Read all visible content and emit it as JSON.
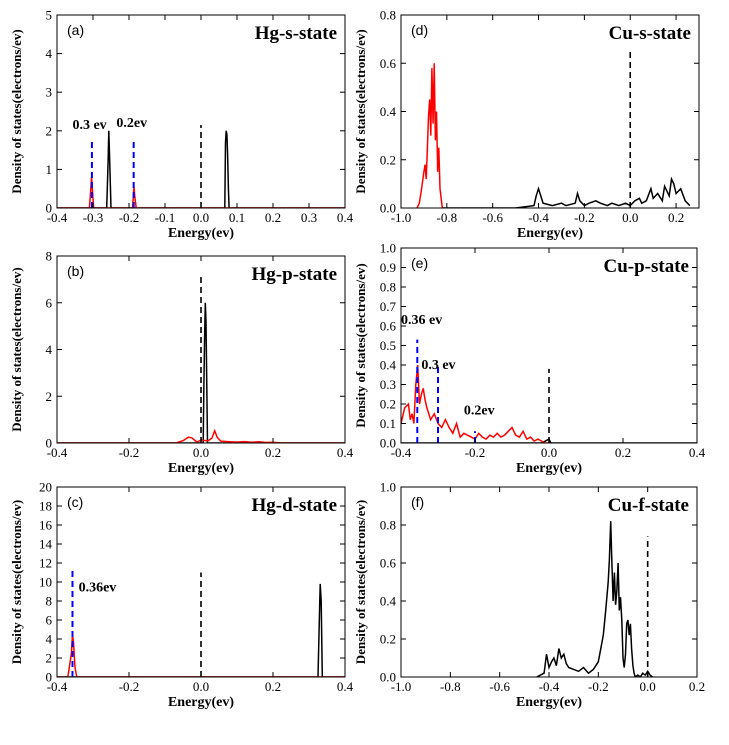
{
  "chart_data": [
    {
      "panel": "(a)",
      "title": "Hg-s-state",
      "type": "line",
      "xlabel": "Energy(ev)",
      "ylabel": "Density of states(electrons/ev)",
      "xlim": [
        -0.4,
        0.4
      ],
      "ylim": [
        0,
        5
      ],
      "xticks": [
        -0.4,
        -0.3,
        -0.2,
        -0.1,
        0.0,
        0.1,
        0.2,
        0.3,
        0.4
      ],
      "yticks": [
        0,
        1,
        2,
        3,
        4,
        5
      ],
      "series": [
        {
          "color": "#000000",
          "x": [
            -0.4,
            -0.262,
            -0.258,
            -0.256,
            -0.254,
            -0.25,
            0.066,
            0.068,
            0.07,
            0.072,
            0.074,
            0.076,
            0.078,
            0.4
          ],
          "y": [
            0,
            0,
            1.2,
            2.0,
            1.3,
            0,
            0,
            1.7,
            2.0,
            1.9,
            1.4,
            0.5,
            0,
            0
          ]
        },
        {
          "color": "#ff0000",
          "x": [
            -0.4,
            -0.31,
            -0.306,
            -0.304,
            -0.302,
            -0.298,
            -0.19,
            -0.188,
            -0.186,
            -0.184,
            -0.18,
            0.4
          ],
          "y": [
            0,
            0,
            0.5,
            0.8,
            0.5,
            0,
            0,
            0.3,
            0.55,
            0.3,
            0,
            0
          ]
        }
      ],
      "vlines": [
        {
          "x": -0.303,
          "y": 1.75,
          "color": "#0000ff"
        },
        {
          "x": -0.187,
          "y": 1.75,
          "color": "#0000ff"
        },
        {
          "x": 0.0,
          "y": 2.15,
          "color": "#000000"
        }
      ],
      "annotations": [
        {
          "text": "0.3 ev",
          "x": -0.357,
          "y": 2.05
        },
        {
          "text": "0.2ev",
          "x": -0.235,
          "y": 2.1
        }
      ]
    },
    {
      "panel": "(b)",
      "title": "Hg-p-state",
      "type": "line",
      "xlabel": "Energy(ev)",
      "ylabel": "Density of states(electrons/ev)",
      "xlim": [
        -0.4,
        0.4
      ],
      "ylim": [
        0,
        8
      ],
      "xticks": [
        -0.4,
        -0.2,
        0.0,
        0.2,
        0.4
      ],
      "yticks": [
        0,
        2,
        4,
        6,
        8
      ],
      "series": [
        {
          "color": "#000000",
          "x": [
            -0.4,
            0.006,
            0.008,
            0.01,
            0.012,
            0.014,
            0.016,
            0.018,
            0.4
          ],
          "y": [
            0,
            0,
            2.5,
            4.5,
            6.0,
            5.2,
            2.4,
            0,
            0
          ]
        },
        {
          "color": "#ff0000",
          "x": [
            -0.4,
            -0.07,
            -0.05,
            -0.035,
            -0.025,
            -0.015,
            -0.01,
            0.0,
            0.02,
            0.03,
            0.038,
            0.045,
            0.055,
            0.08,
            0.1,
            0.12,
            0.14,
            0.16,
            0.18,
            0.2,
            0.22,
            0.4
          ],
          "y": [
            0,
            0,
            0.1,
            0.25,
            0.22,
            0.08,
            0.05,
            0.12,
            0.1,
            0.2,
            0.52,
            0.25,
            0.08,
            0.05,
            0.04,
            0.06,
            0.03,
            0.05,
            0.02,
            0.03,
            0,
            0
          ]
        }
      ],
      "vlines": [
        {
          "x": 0.0,
          "y": 7.2,
          "color": "#000000"
        }
      ],
      "annotations": []
    },
    {
      "panel": "(c)",
      "title": "Hg-d-state",
      "type": "line",
      "xlabel": "Energy(ev)",
      "ylabel": "Density of states(electrons/ev)",
      "xlim": [
        -0.4,
        0.4
      ],
      "ylim": [
        0,
        20
      ],
      "xticks": [
        -0.4,
        -0.2,
        0.0,
        0.2,
        0.4
      ],
      "yticks": [
        0,
        2,
        4,
        6,
        8,
        10,
        12,
        14,
        16,
        18,
        20
      ],
      "series": [
        {
          "color": "#000000",
          "x": [
            -0.4,
            0.325,
            0.328,
            0.331,
            0.334,
            0.337,
            0.4
          ],
          "y": [
            0,
            0,
            5,
            9.8,
            8,
            0,
            0
          ]
        },
        {
          "color": "#ff0000",
          "x": [
            -0.4,
            -0.37,
            -0.364,
            -0.36,
            -0.357,
            -0.354,
            -0.35,
            -0.345,
            0.4
          ],
          "y": [
            0,
            0,
            1.5,
            2.5,
            4.5,
            3.5,
            1.0,
            0,
            0
          ]
        }
      ],
      "vlines": [
        {
          "x": -0.357,
          "y": 11.2,
          "color": "#0000ff"
        },
        {
          "x": 0.0,
          "y": 11.0,
          "color": "#000000"
        }
      ],
      "annotations": [
        {
          "text": "0.36ev",
          "x": -0.34,
          "y": 9.0
        }
      ]
    },
    {
      "panel": "(d)",
      "title": "Cu-s-state",
      "type": "line",
      "xlabel": "Energy(ev)",
      "ylabel": "Density of states(electrons/ev)",
      "xlim": [
        -1.0,
        0.3
      ],
      "ylim": [
        0,
        0.8
      ],
      "xticks": [
        -1.0,
        -0.8,
        -0.6,
        -0.4,
        -0.2,
        0.0,
        0.2
      ],
      "yticks": [
        0.0,
        0.2,
        0.4,
        0.6,
        0.8
      ],
      "series": [
        {
          "color": "#000000",
          "x": [
            -0.82,
            -0.5,
            -0.42,
            -0.41,
            -0.4,
            -0.38,
            -0.34,
            -0.3,
            -0.28,
            -0.24,
            -0.23,
            -0.22,
            -0.2,
            -0.18,
            -0.15,
            -0.13,
            -0.1,
            -0.08,
            -0.05,
            -0.02,
            0.0,
            0.02,
            0.04,
            0.05,
            0.07,
            0.09,
            0.1,
            0.12,
            0.14,
            0.15,
            0.17,
            0.18,
            0.19,
            0.2,
            0.22,
            0.24,
            0.26
          ],
          "y": [
            0,
            0,
            0.01,
            0.05,
            0.08,
            0.02,
            0.01,
            0.02,
            0.01,
            0.02,
            0.06,
            0.03,
            0.01,
            0.02,
            0.03,
            0.02,
            0.01,
            0.02,
            0.01,
            0.02,
            0.01,
            0.03,
            0.04,
            0.02,
            0.03,
            0.08,
            0.04,
            0.06,
            0.03,
            0.09,
            0.05,
            0.12,
            0.1,
            0.06,
            0.08,
            0.03,
            0.01
          ]
        },
        {
          "color": "#ff0000",
          "x": [
            -0.93,
            -0.92,
            -0.91,
            -0.9,
            -0.895,
            -0.89,
            -0.885,
            -0.88,
            -0.875,
            -0.87,
            -0.865,
            -0.86,
            -0.855,
            -0.85,
            -0.845,
            -0.84,
            -0.835,
            -0.83,
            -0.82
          ],
          "y": [
            0,
            0.02,
            0.08,
            0.15,
            0.18,
            0.12,
            0.25,
            0.38,
            0.45,
            0.3,
            0.58,
            0.35,
            0.6,
            0.28,
            0.4,
            0.15,
            0.25,
            0.08,
            0
          ]
        }
      ],
      "vlines": [
        {
          "x": 0.0,
          "y": 0.66,
          "color": "#000000"
        }
      ],
      "annotations": []
    },
    {
      "panel": "(e)",
      "title": "Cu-p-state",
      "type": "line",
      "xlabel": "Energy(ev)",
      "ylabel": "Density of states(electrons/ev)",
      "xlim": [
        -0.4,
        0.4
      ],
      "ylim": [
        0,
        1.0
      ],
      "xticks": [
        -0.4,
        -0.2,
        0.0,
        0.2,
        0.4
      ],
      "yticks": [
        0.0,
        0.1,
        0.2,
        0.3,
        0.4,
        0.5,
        0.6,
        0.7,
        0.8,
        0.9,
        1.0
      ],
      "series": [
        {
          "color": "#000000",
          "x": [
            -0.4,
            -0.02,
            -0.01,
            0.0,
            0.005,
            0.4
          ],
          "y": [
            0,
            0,
            0.01,
            0.02,
            0,
            0
          ]
        },
        {
          "color": "#ff0000",
          "x": [
            -0.4,
            -0.39,
            -0.38,
            -0.375,
            -0.37,
            -0.365,
            -0.36,
            -0.355,
            -0.35,
            -0.345,
            -0.34,
            -0.335,
            -0.33,
            -0.325,
            -0.32,
            -0.31,
            -0.3,
            -0.29,
            -0.28,
            -0.27,
            -0.26,
            -0.25,
            -0.24,
            -0.23,
            -0.22,
            -0.21,
            -0.2,
            -0.19,
            -0.18,
            -0.17,
            -0.16,
            -0.15,
            -0.14,
            -0.13,
            -0.12,
            -0.11,
            -0.1,
            -0.09,
            -0.08,
            -0.07,
            -0.06,
            -0.05,
            -0.04,
            -0.03,
            -0.02,
            -0.01,
            0.0
          ],
          "y": [
            0.1,
            0.18,
            0.2,
            0.12,
            0.15,
            0.1,
            0.3,
            0.4,
            0.2,
            0.25,
            0.28,
            0.22,
            0.18,
            0.15,
            0.12,
            0.15,
            0.1,
            0.08,
            0.12,
            0.08,
            0.05,
            0.1,
            0.03,
            0.05,
            0.04,
            0.03,
            0.02,
            0.05,
            0.03,
            0.02,
            0.04,
            0.03,
            0.05,
            0.03,
            0.04,
            0.06,
            0.08,
            0.04,
            0.03,
            0.06,
            0.02,
            0.03,
            0.01,
            0.02,
            0.01,
            0.0,
            0.0
          ]
        }
      ],
      "vlines": [
        {
          "x": -0.356,
          "y": 0.53,
          "color": "#0000ff"
        },
        {
          "x": -0.3,
          "y": 0.4,
          "color": "#0000ff"
        },
        {
          "x": -0.2,
          "y": 0.06,
          "color": "#0000ff"
        },
        {
          "x": 0.0,
          "y": 0.38,
          "color": "#000000"
        }
      ],
      "annotations": [
        {
          "text": "0.36 ev",
          "x": -0.4,
          "y": 0.61
        },
        {
          "text": "0.3 ev",
          "x": -0.345,
          "y": 0.38
        },
        {
          "text": "0.2ev",
          "x": -0.23,
          "y": 0.145
        }
      ]
    },
    {
      "panel": "(f)",
      "title": "Cu-f-state",
      "type": "line",
      "xlabel": "Energy(ev)",
      "ylabel": "Density of states(electrons/ev)",
      "xlim": [
        -1.0,
        0.2
      ],
      "ylim": [
        0,
        1.0
      ],
      "xticks": [
        -1.0,
        -0.8,
        -0.6,
        -0.4,
        -0.2,
        0.0,
        0.2
      ],
      "yticks": [
        0.0,
        0.2,
        0.4,
        0.6,
        0.8,
        1.0
      ],
      "series": [
        {
          "color": "#000000",
          "x": [
            -0.45,
            -0.42,
            -0.41,
            -0.4,
            -0.39,
            -0.38,
            -0.37,
            -0.36,
            -0.35,
            -0.34,
            -0.33,
            -0.32,
            -0.3,
            -0.28,
            -0.26,
            -0.24,
            -0.22,
            -0.2,
            -0.19,
            -0.18,
            -0.17,
            -0.16,
            -0.155,
            -0.15,
            -0.145,
            -0.14,
            -0.135,
            -0.13,
            -0.125,
            -0.12,
            -0.115,
            -0.11,
            -0.105,
            -0.1,
            -0.095,
            -0.09,
            -0.085,
            -0.08,
            -0.075,
            -0.07,
            -0.065,
            -0.06,
            -0.055,
            -0.05,
            -0.04,
            -0.03,
            -0.02,
            -0.01,
            0.0,
            0.01,
            0.02
          ],
          "y": [
            0,
            0.02,
            0.12,
            0.05,
            0.08,
            0.1,
            0.06,
            0.15,
            0.1,
            0.12,
            0.07,
            0.05,
            0.04,
            0.03,
            0.05,
            0.02,
            0.04,
            0.08,
            0.15,
            0.22,
            0.35,
            0.5,
            0.62,
            0.82,
            0.6,
            0.4,
            0.55,
            0.38,
            0.45,
            0.6,
            0.35,
            0.42,
            0.3,
            0.1,
            0.05,
            0.12,
            0.28,
            0.3,
            0.22,
            0.28,
            0.15,
            0.06,
            0.02,
            0.0,
            0.01,
            0.0,
            0.02,
            0.01,
            0.03,
            0.01,
            0.0
          ]
        }
      ],
      "vlines": [
        {
          "x": 0.0,
          "y": 0.74,
          "color": "#000000"
        }
      ],
      "annotations": []
    }
  ]
}
